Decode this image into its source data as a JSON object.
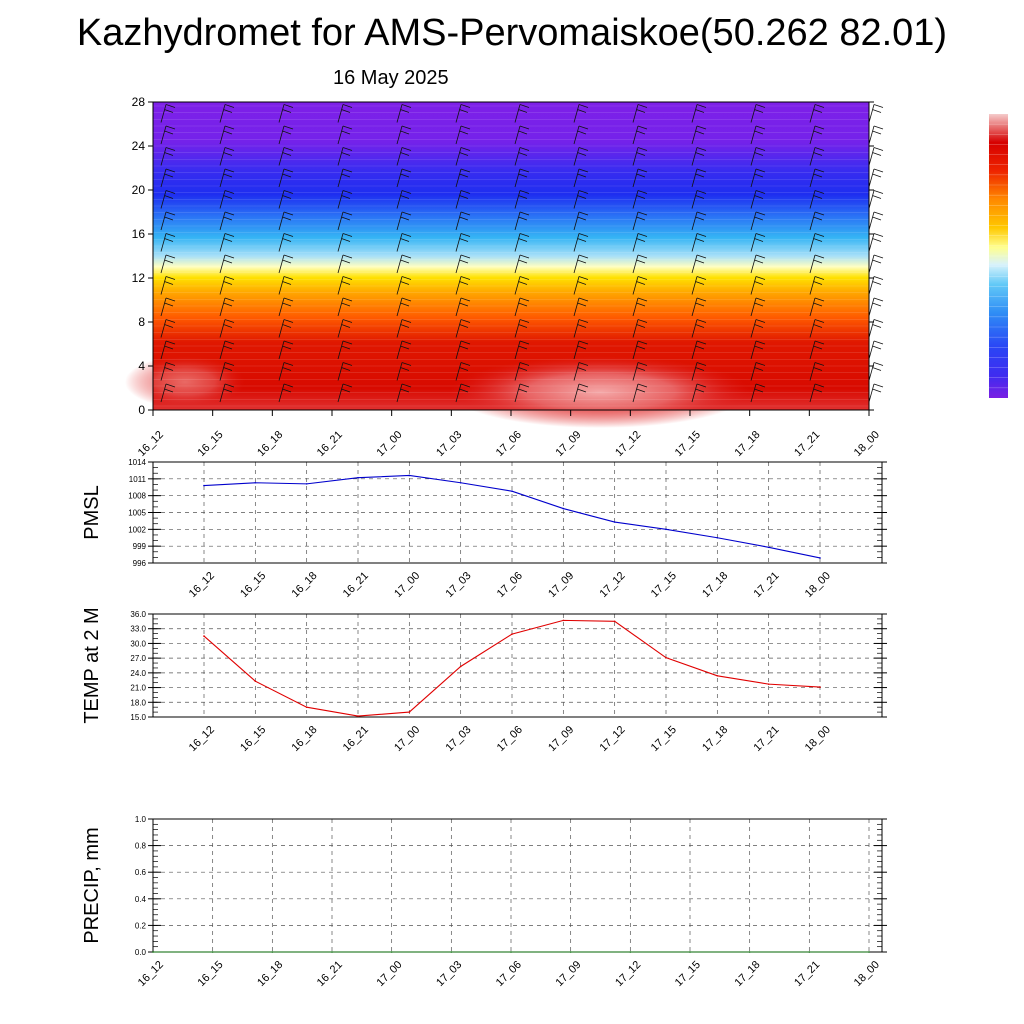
{
  "title": "Kazhydromet for AMS-Pervomaiskoe(50.262 82.01)",
  "date": "16 May 2025",
  "chart_data": [
    {
      "type": "heatmap",
      "name": "upper-air-cross-section",
      "x": [
        "16_12",
        "16_15",
        "16_18",
        "16_21",
        "17_00",
        "17_03",
        "17_06",
        "17_09",
        "17_12",
        "17_15",
        "17_18",
        "17_21",
        "18_00"
      ],
      "xlabel": "",
      "ylabel": "",
      "yticks": [
        0,
        4,
        8,
        12,
        16,
        20,
        24,
        28
      ],
      "ylim": [
        0,
        28
      ],
      "colorbar": [
        "#7a1fe3",
        "#3e2cf0",
        "#2a36f5",
        "#1e52f7",
        "#2f7df5",
        "#2ba7f3",
        "#62c9f7",
        "#c8ecfb",
        "#ffffb0",
        "#ffe11c",
        "#ffb800",
        "#ff8800",
        "#ff5c00",
        "#ee2400",
        "#d60000",
        "#e66a6a",
        "#f5cccc"
      ],
      "wind_barbs": true
    },
    {
      "type": "line",
      "name": "pmsl",
      "ylabel": "PMSL",
      "x": [
        "16_12",
        "16_15",
        "16_18",
        "16_21",
        "17_00",
        "17_03",
        "17_06",
        "17_09",
        "17_12",
        "17_15",
        "17_18",
        "17_21",
        "18_00"
      ],
      "yticks": [
        "996",
        "999",
        "1002",
        "1005",
        "1008",
        "1011",
        "1014"
      ],
      "ylim": [
        996,
        1014
      ],
      "series": [
        {
          "values": [
            1009.8,
            1010.3,
            1010.1,
            1011.2,
            1011.6,
            1010.3,
            1008.8,
            1005.7,
            1003.3,
            1002.0,
            1000.5,
            998.8,
            996.9
          ],
          "color": "#0000cc"
        }
      ],
      "grid": true
    },
    {
      "type": "line",
      "name": "temp-2m",
      "ylabel": "TEMP at 2 M",
      "x": [
        "16_12",
        "16_15",
        "16_18",
        "16_21",
        "17_00",
        "17_03",
        "17_06",
        "17_09",
        "17_12",
        "17_15",
        "17_18",
        "17_21",
        "18_00"
      ],
      "yticks": [
        "15.0",
        "18.0",
        "21.0",
        "24.0",
        "27.0",
        "30.0",
        "33.0",
        "36.0"
      ],
      "ylim": [
        15,
        36
      ],
      "series": [
        {
          "values": [
            31.5,
            22.3,
            17.0,
            15.2,
            16.0,
            25.3,
            31.9,
            34.7,
            34.5,
            27.1,
            23.4,
            21.7,
            21.1
          ],
          "color": "#e00000"
        }
      ],
      "grid": true
    },
    {
      "type": "line",
      "name": "precip",
      "ylabel": "PRECIP, mm",
      "x": [
        "16_12",
        "16_15",
        "16_18",
        "16_21",
        "17_00",
        "17_03",
        "17_06",
        "17_09",
        "17_12",
        "17_15",
        "17_18",
        "17_21",
        "18_00"
      ],
      "yticks": [
        "0.0",
        "0.2",
        "0.4",
        "0.6",
        "0.8",
        "1.0"
      ],
      "ylim": [
        0,
        1.0
      ],
      "series": [
        {
          "values": [
            0,
            0,
            0,
            0,
            0,
            0,
            0,
            0,
            0,
            0,
            0,
            0,
            0
          ],
          "color": "#006600"
        }
      ],
      "grid": true
    }
  ]
}
